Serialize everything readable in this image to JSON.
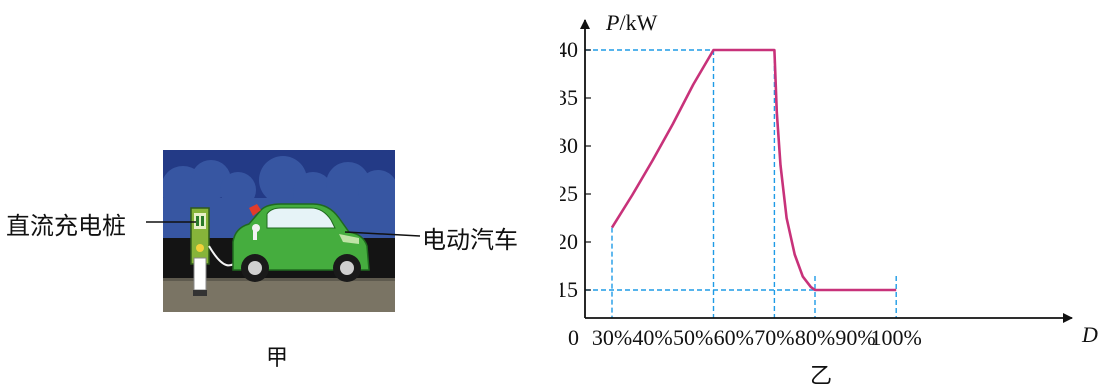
{
  "figure_a": {
    "label_pile": "直流充电桩",
    "label_car": "电动汽车",
    "caption": "甲"
  },
  "figure_b": {
    "caption": "乙"
  },
  "chart_data": {
    "type": "line",
    "xlabel": "D",
    "ylabel": "P/kW",
    "ylabel_italic": "P",
    "ylabel_unit": "/kW",
    "origin_label": "0",
    "x_ticks": [
      "30%",
      "40%",
      "50%",
      "60%",
      "70%",
      "80%",
      "90%",
      "100%"
    ],
    "x_tick_values": [
      30,
      40,
      50,
      60,
      70,
      80,
      90,
      100
    ],
    "y_ticks": [
      15,
      20,
      25,
      30,
      35,
      40
    ],
    "xlim": [
      25,
      112
    ],
    "ylim": [
      12,
      45
    ],
    "curve": {
      "color": "#c8327a",
      "points": [
        {
          "x": 30,
          "y": 21.5
        },
        {
          "x": 35,
          "y": 24.9
        },
        {
          "x": 40,
          "y": 28.5
        },
        {
          "x": 45,
          "y": 32.3
        },
        {
          "x": 50,
          "y": 36.4
        },
        {
          "x": 55,
          "y": 40
        },
        {
          "x": 70,
          "y": 40
        },
        {
          "x": 70.6,
          "y": 33.5
        },
        {
          "x": 71.5,
          "y": 28
        },
        {
          "x": 73,
          "y": 22.5
        },
        {
          "x": 75,
          "y": 18.7
        },
        {
          "x": 77,
          "y": 16.4
        },
        {
          "x": 79,
          "y": 15.3
        },
        {
          "x": 80,
          "y": 15
        },
        {
          "x": 100,
          "y": 15
        }
      ]
    },
    "guides": {
      "color": "#1e9be6",
      "vertical_x": [
        30,
        55,
        70,
        80,
        100
      ],
      "horizontal_y": [
        40,
        15
      ]
    },
    "grid": false
  }
}
